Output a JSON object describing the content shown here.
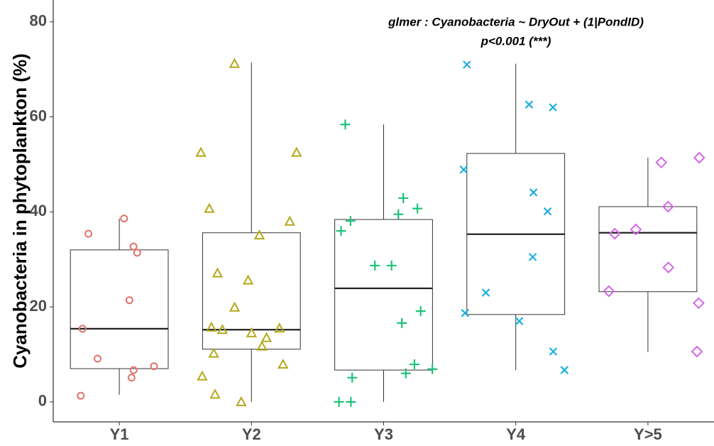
{
  "chart_data": {
    "type": "box",
    "ylabel": "Cyanobacteria in phytoplankton (%)",
    "annotations": [
      "glmer : Cyanobacteria ~ DryOut + (1|PondID)",
      "p<0.001 (***)"
    ],
    "categories": [
      "Y1",
      "Y2",
      "Y3",
      "Y4",
      "Y>5"
    ],
    "ylim": [
      -4.2,
      84.6
    ],
    "yticks": [
      0,
      20,
      40,
      60,
      80
    ],
    "grid": false,
    "boxes": [
      {
        "min": 1.5,
        "q1": 7.0,
        "median": 15.4,
        "q3": 32.0,
        "max": 38.6,
        "color": "#e0736a",
        "shape": "circle",
        "points": [
          38.6,
          35.4,
          32.7,
          31.4,
          21.4,
          15.4,
          9.1,
          7.5,
          6.7,
          5.1,
          1.3
        ]
      },
      {
        "min": 0,
        "q1": 11.1,
        "median": 15.2,
        "q3": 35.6,
        "max": 71.4,
        "color": "#b5a81c",
        "shape": "triangle",
        "points": [
          71.2,
          52.5,
          52.5,
          40.7,
          38.0,
          35.1,
          27.1,
          25.6,
          19.9,
          15.5,
          15.7,
          15.2,
          13.5,
          11.7,
          14.5,
          10.2,
          7.9,
          5.4,
          1.6,
          0
        ]
      },
      {
        "min": 0,
        "q1": 6.7,
        "median": 23.9,
        "q3": 38.4,
        "max": 58.4,
        "color": "#1ec27a",
        "shape": "plus",
        "points": [
          58.4,
          42.9,
          40.7,
          39.5,
          38.1,
          36.0,
          28.7,
          28.7,
          19.1,
          16.6,
          7.9,
          6.9,
          6.0,
          5.1,
          0,
          0
        ]
      },
      {
        "min": 6.7,
        "q1": 18.4,
        "median": 35.3,
        "q3": 52.3,
        "max": 71.2,
        "color": "#1eb0e0",
        "shape": "cross",
        "points": [
          71.0,
          62.6,
          62.0,
          48.9,
          44.1,
          40.1,
          30.5,
          23.0,
          18.7,
          17.0,
          10.6,
          6.7
        ]
      },
      {
        "min": 10.5,
        "q1": 23.2,
        "median": 35.6,
        "q3": 41.1,
        "max": 51.4,
        "color": "#d466e8",
        "shape": "diamond",
        "points": [
          51.4,
          50.4,
          41.1,
          36.3,
          35.4,
          28.3,
          23.3,
          20.8,
          10.6
        ]
      }
    ]
  }
}
